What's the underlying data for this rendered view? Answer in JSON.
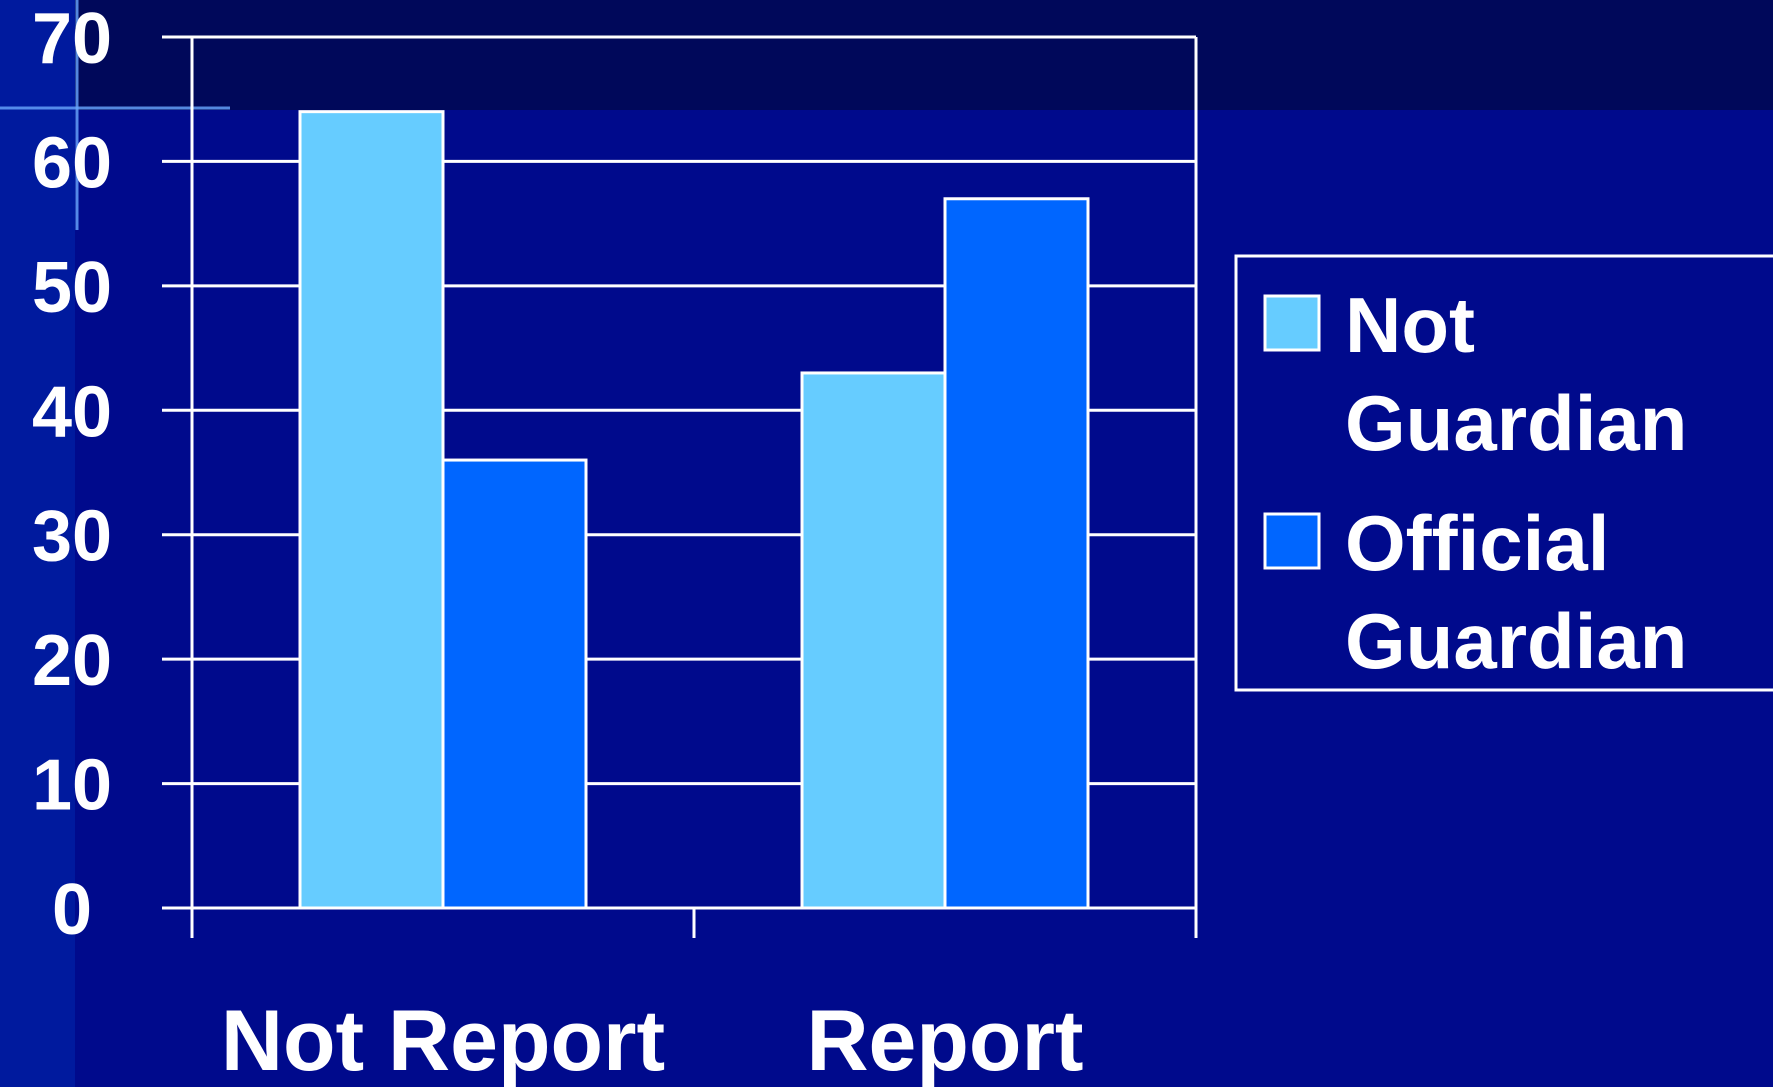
{
  "colors": {
    "background": "#000a8c",
    "band": "#00085a",
    "edge": "#001a9e",
    "grid": "#ffffff",
    "bar_outline": "#ffffff"
  },
  "chart_data": {
    "type": "bar",
    "title": "",
    "xlabel": "",
    "ylabel": "",
    "categories": [
      "Not Report",
      "Report"
    ],
    "series": [
      {
        "name": "Not Guardian",
        "legend_lines": [
          "Not",
          "Guardian"
        ],
        "color": "#66ccff",
        "values": [
          64,
          43
        ]
      },
      {
        "name": "Official Guardian",
        "legend_lines": [
          "Official",
          "Guardian"
        ],
        "color": "#0066ff",
        "values": [
          36,
          57
        ]
      }
    ],
    "ylim": [
      0,
      70
    ],
    "yticks": [
      0,
      10,
      20,
      30,
      40,
      50,
      60,
      70
    ],
    "grid": true,
    "legend_position": "right"
  }
}
